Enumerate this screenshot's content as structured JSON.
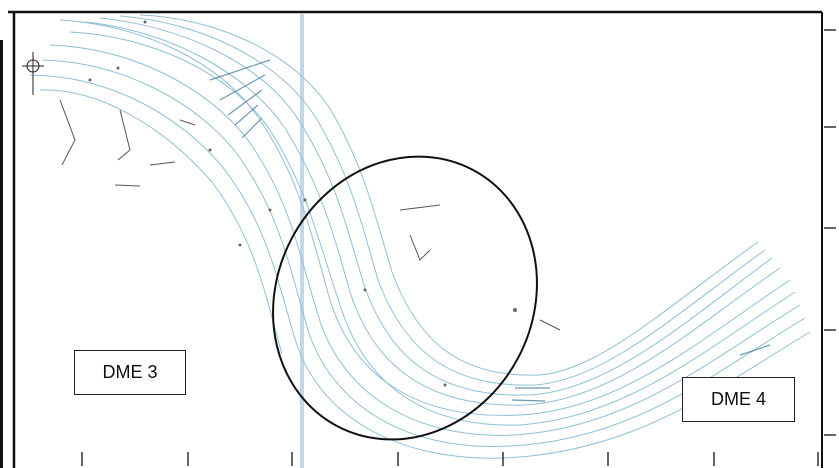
{
  "zones": [
    {
      "label": "DME 3"
    },
    {
      "label": "DME 4"
    }
  ],
  "colors": {
    "contour": "#8fbfd8",
    "contour_dark": "#4a7e9e",
    "frame": "#111111",
    "ellipse": "#111111",
    "annotation": "#333333",
    "grid_line": "#aac8dc"
  },
  "icons": [
    "north-arrow-icon"
  ]
}
